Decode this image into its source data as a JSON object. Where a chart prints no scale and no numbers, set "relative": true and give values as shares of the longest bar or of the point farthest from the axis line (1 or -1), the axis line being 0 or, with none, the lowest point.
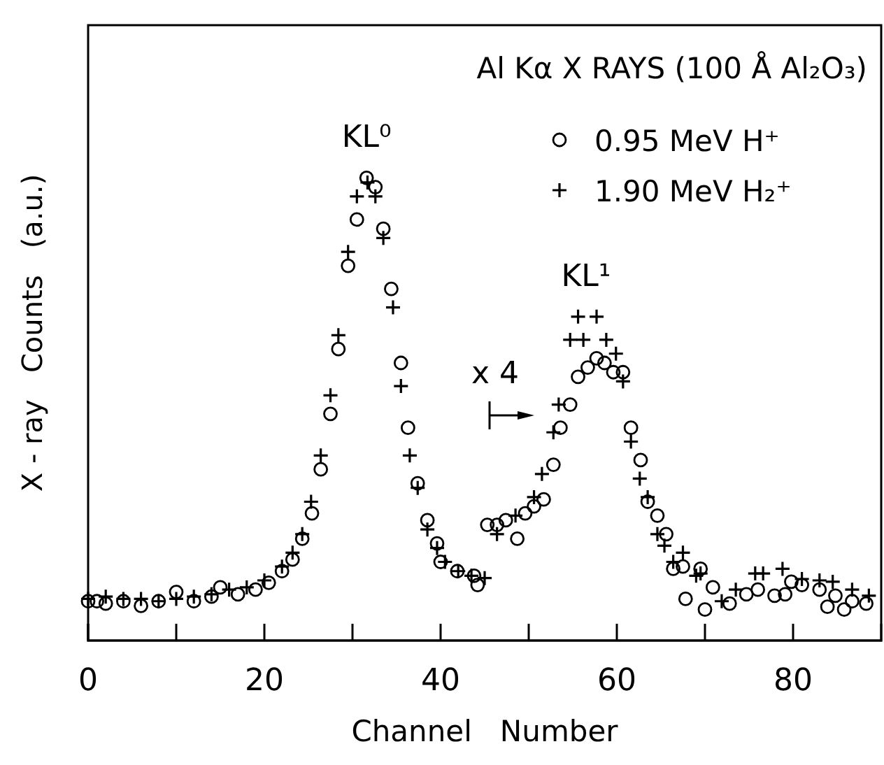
{
  "chart_data": {
    "type": "scatter",
    "title": "Al Kα  X RAYS (100 Å Al₂O₃)",
    "xlabel": "Channel   Number",
    "ylabel": "X - ray   Counts   (a.u.)",
    "relative": true,
    "xlim": [
      0,
      90
    ],
    "xticks": [
      0,
      {
        "value": 10,
        "label": null
      },
      20,
      {
        "value": 30,
        "label": null
      },
      40,
      {
        "value": 50,
        "label": null
      },
      60,
      {
        "value": 70,
        "label": null
      },
      80
    ],
    "legend": "top right",
    "annotations": [
      {
        "text": "KL⁰",
        "x": 31.6,
        "y": 1.0
      },
      {
        "text": "KL¹",
        "x": 56.5,
        "y": 0.7
      },
      "x 4"
    ],
    "series": [
      {
        "name": "0.95 MeV H⁺",
        "color": "#000000",
        "marker": "circle",
        "x": [
          0,
          1,
          2,
          4,
          6,
          8,
          10,
          12,
          14,
          15,
          17,
          19,
          20.5,
          22,
          23.2,
          24.3,
          25.4,
          26.4,
          27.5,
          28.4,
          29.5,
          30.5,
          31.6,
          32.6,
          33.5,
          34.4,
          35.5,
          36.3,
          37.4,
          38.5,
          39.6,
          40,
          41.9,
          43.8,
          44.2,
          45.3,
          46.4,
          47.4,
          48.7,
          49.6,
          50.6,
          51.7,
          52.8,
          53.6,
          54.7,
          55.6,
          56.7,
          57.7,
          58.6,
          59.6,
          60.7,
          61.6,
          62.7,
          63.5,
          64.6,
          65.6,
          66.4,
          67.5,
          67.8,
          69.5,
          70,
          70.9,
          72.8,
          74.7,
          76,
          77.9,
          79.1,
          79.8,
          81,
          83,
          83.9,
          84.8,
          85.8,
          86.7,
          88.3
        ],
        "values": [
          0.085,
          0.085,
          0.08,
          0.085,
          0.075,
          0.085,
          0.105,
          0.085,
          0.095,
          0.115,
          0.1,
          0.11,
          0.125,
          0.15,
          0.175,
          0.22,
          0.275,
          0.37,
          0.49,
          0.63,
          0.81,
          0.91,
          1.0,
          0.98,
          0.89,
          0.76,
          0.6,
          0.46,
          0.34,
          0.26,
          0.21,
          0.17,
          0.15,
          0.14,
          0.12,
          0.25,
          0.25,
          0.26,
          0.22,
          0.275,
          0.29,
          0.305,
          0.38,
          0.46,
          0.51,
          0.57,
          0.59,
          0.61,
          0.6,
          0.58,
          0.58,
          0.46,
          0.39,
          0.3,
          0.27,
          0.23,
          0.155,
          0.16,
          0.09,
          0.155,
          0.067,
          0.115,
          0.08,
          0.1,
          0.11,
          0.097,
          0.1,
          0.127,
          0.12,
          0.11,
          0.073,
          0.097,
          0.067,
          0.085,
          0.08
        ]
      },
      {
        "name": "1.90 MeV H₂⁺",
        "color": "#000000",
        "marker": "cross",
        "x": [
          0,
          2,
          4,
          6,
          8,
          10,
          12,
          14,
          16,
          18,
          20,
          22,
          23.2,
          24.3,
          25.3,
          26.4,
          27.5,
          28.4,
          29.5,
          30.5,
          31.7,
          32.6,
          33.5,
          34.6,
          35.5,
          36.5,
          37.4,
          38.5,
          39.6,
          40.5,
          42,
          43.5,
          45,
          46.4,
          48.5,
          50.6,
          51.5,
          52.8,
          53.4,
          54.7,
          55.6,
          56.2,
          57.7,
          58.8,
          59.9,
          60.7,
          61.6,
          62.6,
          63.5,
          64.6,
          65.4,
          66.4,
          67.5,
          69,
          69.5,
          71.9,
          73.5,
          75.7,
          76.6,
          78.8,
          81,
          83,
          84.5,
          86.7,
          88.6
        ],
        "values": [
          0.09,
          0.095,
          0.09,
          0.09,
          0.085,
          0.09,
          0.095,
          0.1,
          0.11,
          0.115,
          0.13,
          0.16,
          0.19,
          0.23,
          0.3,
          0.4,
          0.53,
          0.66,
          0.84,
          0.96,
          0.99,
          0.96,
          0.87,
          0.72,
          0.55,
          0.4,
          0.33,
          0.24,
          0.2,
          0.17,
          0.15,
          0.14,
          0.135,
          0.23,
          0.27,
          0.31,
          0.36,
          0.45,
          0.51,
          0.65,
          0.7,
          0.65,
          0.7,
          0.65,
          0.62,
          0.56,
          0.43,
          0.35,
          0.31,
          0.23,
          0.205,
          0.17,
          0.19,
          0.14,
          0.145,
          0.085,
          0.11,
          0.145,
          0.145,
          0.155,
          0.133,
          0.13,
          0.127,
          0.11,
          0.097
        ]
      }
    ]
  }
}
